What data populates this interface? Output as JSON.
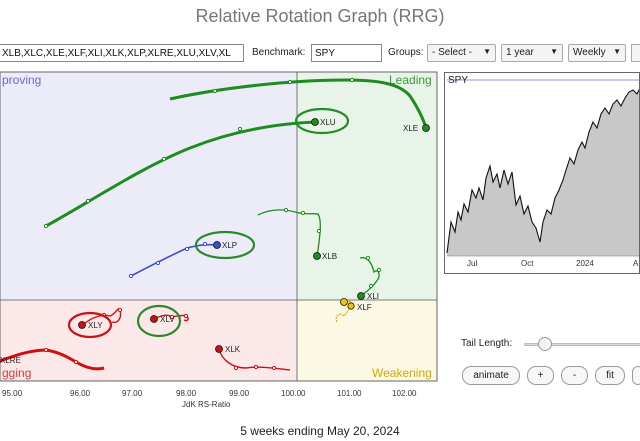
{
  "title": "Relative Rotation Graph (RRG)",
  "toolbar": {
    "symbols_value": "XLB,XLC,XLE,XLF,XLI,XLK,XLP,XLRE,XLU,XLV,XL",
    "benchmark_label": "Benchmark:",
    "benchmark_value": "SPY",
    "groups_label": "Groups:",
    "groups_value": "- Select -",
    "period_value": "1 year",
    "frequency_value": "Weekly"
  },
  "quadrants": {
    "improving": "proving",
    "leading": "Leading",
    "lagging": "gging",
    "weakening": "Weakening",
    "colors": {
      "improving": "#ececf8",
      "leading": "#e8f4e8",
      "lagging": "#fbe9ea",
      "weakening": "#fbf8e4"
    }
  },
  "x_axis": {
    "label": "JdK RS-Ratio",
    "ticks": [
      "95.00",
      "96.00",
      "97.00",
      "98.00",
      "99.00",
      "100.00",
      "101.00",
      "102.00"
    ]
  },
  "tails": [
    {
      "symbol": "XLE",
      "color": "#1e8c1e",
      "label": "XLE"
    },
    {
      "symbol": "XLU",
      "color": "#1e8c1e",
      "label": "XLU"
    },
    {
      "symbol": "XLB",
      "color": "#1e8c1e",
      "label": "XLB"
    },
    {
      "symbol": "XLI",
      "color": "#1e8c1e",
      "label": "XLI"
    },
    {
      "symbol": "XLF",
      "color": "#e0b000",
      "label": "XLF"
    },
    {
      "symbol": "XLP",
      "color": "#3a4fcf",
      "label": "XLP"
    },
    {
      "symbol": "XLY",
      "color": "#d01010",
      "label": "XLY"
    },
    {
      "symbol": "XLV",
      "color": "#d01010",
      "label": "XLV"
    },
    {
      "symbol": "XLK",
      "color": "#d01010",
      "label": "XLK"
    },
    {
      "symbol": "XLRE",
      "color": "#d01010",
      "label": "XLRE"
    }
  ],
  "benchmark_chart": {
    "symbol": "SPY",
    "x_ticks": [
      "Jul",
      "Oct",
      "2024",
      "A"
    ],
    "line_color": "#111111",
    "fill_color": "#c8c8c8"
  },
  "controls": {
    "tail_length_label": "Tail Length:",
    "animate_label": "animate",
    "plus_label": "+",
    "minus_label": "-",
    "fit_label": "fit"
  },
  "footer": "5 weeks ending May 20, 2024"
}
